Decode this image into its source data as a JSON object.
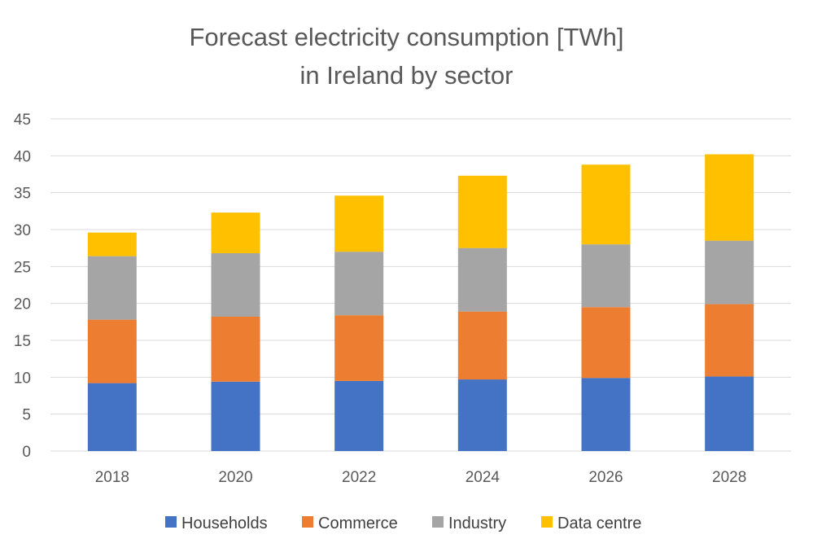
{
  "chart_data": {
    "type": "bar",
    "stacked": true,
    "title": [
      "Forecast electricity consumption [TWh]",
      "in Ireland by sector"
    ],
    "xlabel": "",
    "ylabel": "",
    "categories": [
      "2018",
      "2020",
      "2022",
      "2024",
      "2026",
      "2028"
    ],
    "ylim": [
      0,
      45
    ],
    "yticks": [
      0,
      5,
      10,
      15,
      20,
      25,
      30,
      35,
      40,
      45
    ],
    "grid": true,
    "legend_position": "bottom",
    "series": [
      {
        "name": "Households",
        "color": "#4472C4",
        "values": [
          9.2,
          9.4,
          9.5,
          9.7,
          9.9,
          10.1
        ]
      },
      {
        "name": "Commerce",
        "color": "#ED7D31",
        "values": [
          8.6,
          8.8,
          8.9,
          9.2,
          9.6,
          9.8
        ]
      },
      {
        "name": "Industry",
        "color": "#A5A5A5",
        "values": [
          8.6,
          8.6,
          8.6,
          8.6,
          8.5,
          8.6
        ]
      },
      {
        "name": "Data centre",
        "color": "#FFC000",
        "values": [
          3.2,
          5.5,
          7.6,
          9.8,
          10.8,
          11.7
        ]
      }
    ]
  }
}
